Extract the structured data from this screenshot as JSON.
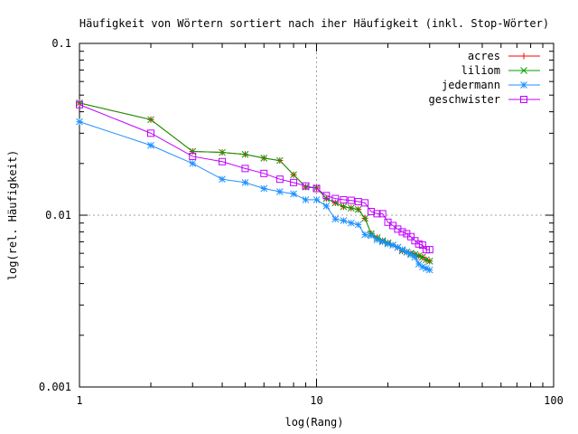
{
  "chart_data": {
    "type": "line",
    "title": "Häufigkeit von Wörtern sortiert nach iher Häufigkeit (inkl. Stop-Wörter)",
    "xlabel": "log(Rang)",
    "ylabel": "log(rel. Häufigkeit)",
    "xscale": "log",
    "yscale": "log",
    "xlim": [
      1,
      100
    ],
    "ylim": [
      0.001,
      0.1
    ],
    "xticks": [
      1,
      10,
      100
    ],
    "xtick_labels": [
      "1",
      "10",
      "100"
    ],
    "yticks": [
      0.001,
      0.01,
      0.1
    ],
    "ytick_labels": [
      "0.001",
      "0.01",
      "0.1"
    ],
    "grid": "dotted at major ticks",
    "legend_position": "top-right",
    "series": [
      {
        "name": "acres",
        "color": "#ff0000",
        "marker": "plus",
        "x": [
          1,
          2,
          3,
          4,
          5,
          6,
          7,
          8,
          9,
          10,
          11,
          12,
          13,
          14,
          15,
          16,
          17,
          18,
          19,
          20,
          21,
          22,
          23,
          24,
          25,
          26,
          27,
          28,
          29,
          30
        ],
        "y": [
          0.045,
          0.036,
          0.0235,
          0.0232,
          0.0226,
          0.0215,
          0.0208,
          0.0172,
          0.0146,
          0.0144,
          0.0125,
          0.0118,
          0.0112,
          0.011,
          0.0108,
          0.0096,
          0.0078,
          0.0074,
          0.0071,
          0.0069,
          0.0067,
          0.0065,
          0.0062,
          0.0061,
          0.006,
          0.0059,
          0.0058,
          0.0057,
          0.0055,
          0.0054
        ]
      },
      {
        "name": "liliom",
        "color": "#00a000",
        "marker": "cross",
        "x": [
          1,
          2,
          3,
          4,
          5,
          6,
          7,
          8,
          9,
          10,
          11,
          12,
          13,
          14,
          15,
          16,
          17,
          18,
          19,
          20,
          21,
          22,
          23,
          24,
          25,
          26,
          27,
          28,
          29,
          30
        ],
        "y": [
          0.045,
          0.036,
          0.0235,
          0.0232,
          0.0226,
          0.0215,
          0.0208,
          0.0172,
          0.0146,
          0.0144,
          0.0125,
          0.0118,
          0.0112,
          0.011,
          0.0108,
          0.0096,
          0.0078,
          0.0074,
          0.0071,
          0.0069,
          0.0067,
          0.0065,
          0.0062,
          0.0061,
          0.006,
          0.0059,
          0.0058,
          0.0057,
          0.0055,
          0.0054
        ]
      },
      {
        "name": "jedermann",
        "color": "#1e90ff",
        "marker": "star",
        "x": [
          1,
          2,
          3,
          4,
          5,
          6,
          7,
          8,
          9,
          10,
          11,
          12,
          13,
          14,
          15,
          16,
          17,
          18,
          19,
          20,
          21,
          22,
          23,
          24,
          25,
          26,
          27,
          28,
          29,
          30
        ],
        "y": [
          0.035,
          0.0255,
          0.02,
          0.0162,
          0.0155,
          0.0143,
          0.0137,
          0.0133,
          0.0123,
          0.0123,
          0.0113,
          0.0095,
          0.0093,
          0.009,
          0.0088,
          0.0077,
          0.0076,
          0.0072,
          0.007,
          0.0068,
          0.0067,
          0.0065,
          0.0063,
          0.0061,
          0.0059,
          0.0057,
          0.0052,
          0.005,
          0.0049,
          0.0048
        ]
      },
      {
        "name": "geschwister",
        "color": "#c000ff",
        "marker": "square",
        "x": [
          1,
          2,
          3,
          4,
          5,
          6,
          7,
          8,
          9,
          10,
          11,
          12,
          13,
          14,
          15,
          16,
          17,
          18,
          19,
          20,
          21,
          22,
          23,
          24,
          25,
          26,
          27,
          28,
          29,
          30
        ],
        "y": [
          0.044,
          0.03,
          0.022,
          0.0205,
          0.0187,
          0.0175,
          0.0162,
          0.0155,
          0.0148,
          0.0143,
          0.013,
          0.0125,
          0.0123,
          0.0122,
          0.012,
          0.0118,
          0.0105,
          0.0102,
          0.0102,
          0.0091,
          0.0087,
          0.0083,
          0.008,
          0.0078,
          0.0075,
          0.0071,
          0.0068,
          0.0067,
          0.0063,
          0.0063
        ]
      }
    ]
  }
}
